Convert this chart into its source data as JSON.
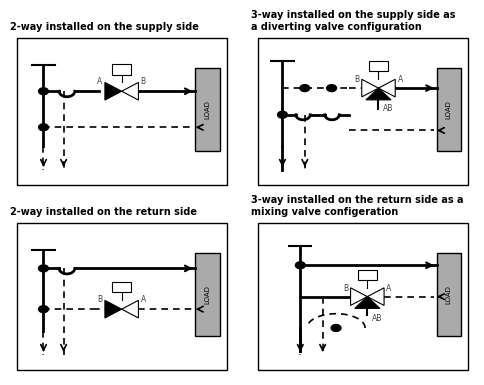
{
  "title_1": "2-way installed on the supply side",
  "title_2": "3-way installed on the supply side as\na diverting valve configuration",
  "title_3": "2-way installed on the return side",
  "title_4": "3-way installed on the return side as a\nmixing valve configeration",
  "bg_color": "#ffffff",
  "load_color": "#aaaaaa",
  "line_color": "#000000"
}
